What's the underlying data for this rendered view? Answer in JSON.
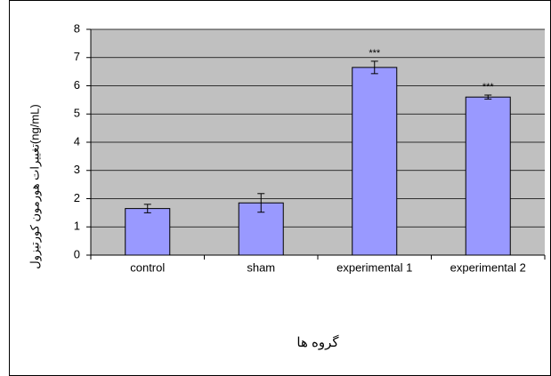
{
  "chart_data": {
    "type": "bar",
    "y_label": "تغییرات هورمون کورتیزول(ng/mL)",
    "x_label": "گروه ها",
    "categories": [
      "control",
      "sham",
      "experimental 1",
      "experimental 2"
    ],
    "values": [
      1.65,
      1.85,
      6.65,
      5.6
    ],
    "errors": [
      0.15,
      0.33,
      0.22,
      0.07
    ],
    "significance": [
      null,
      null,
      "***",
      "***"
    ],
    "color": "#9999ff",
    "ylim": [
      0,
      8
    ],
    "yticks": [
      0,
      1,
      2,
      3,
      4,
      5,
      6,
      7,
      8
    ],
    "grid": true
  }
}
